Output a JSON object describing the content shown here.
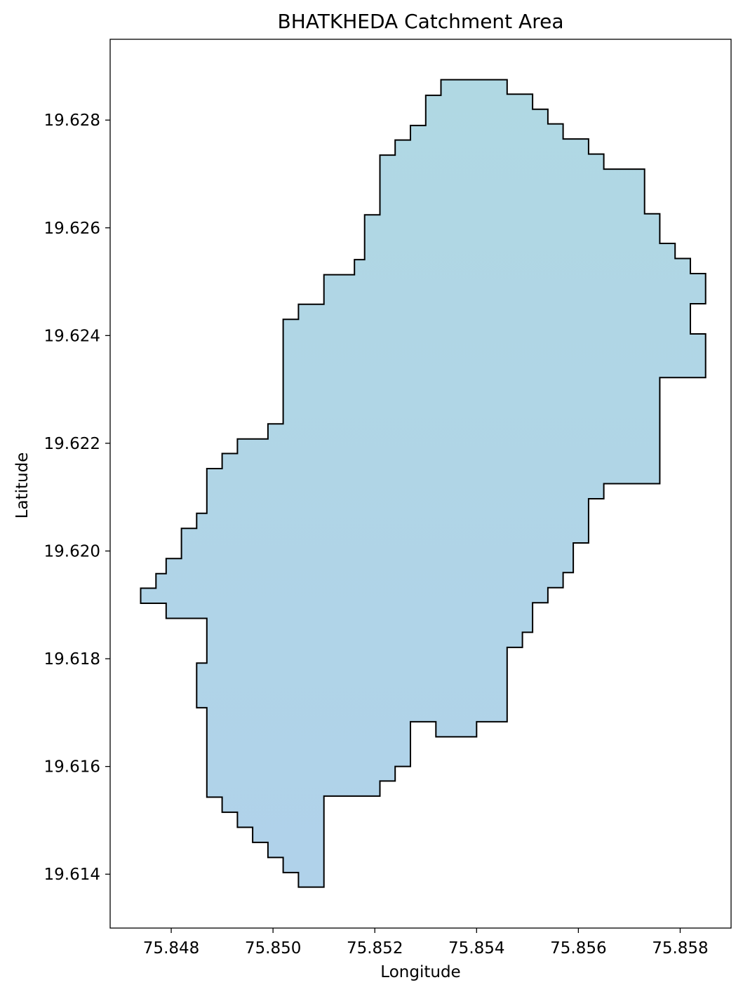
{
  "chart_data": {
    "type": "map",
    "title": "BHATKHEDA Catchment Area",
    "xlabel": "Longitude",
    "ylabel": "Latitude",
    "xlim": [
      75.8468,
      75.859
    ],
    "ylim": [
      19.613,
      19.6295
    ],
    "xticks": [
      75.848,
      75.85,
      75.852,
      75.854,
      75.856,
      75.858
    ],
    "xtick_labels": [
      "75.848",
      "75.850",
      "75.852",
      "75.854",
      "75.856",
      "75.858"
    ],
    "yticks": [
      19.614,
      19.616,
      19.618,
      19.62,
      19.622,
      19.624,
      19.626,
      19.628
    ],
    "ytick_labels": [
      "19.614",
      "19.616",
      "19.618",
      "19.620",
      "19.622",
      "19.624",
      "19.626",
      "19.628"
    ],
    "grid": false,
    "fill_color_top": "#b0d8e3",
    "fill_color_bottom": "#b0d2ea",
    "edge_color": "#000000",
    "polygon": [
      [
        75.8533,
        19.62875
      ],
      [
        75.8546,
        19.62875
      ],
      [
        75.8546,
        19.62848
      ],
      [
        75.8551,
        19.62848
      ],
      [
        75.8551,
        19.6282
      ],
      [
        75.8554,
        19.6282
      ],
      [
        75.8554,
        19.62793
      ],
      [
        75.8557,
        19.62793
      ],
      [
        75.8557,
        19.62765
      ],
      [
        75.8562,
        19.62765
      ],
      [
        75.8562,
        19.62737
      ],
      [
        75.8565,
        19.62737
      ],
      [
        75.8565,
        19.62709
      ],
      [
        75.8573,
        19.62709
      ],
      [
        75.8573,
        19.62626
      ],
      [
        75.8576,
        19.62626
      ],
      [
        75.8576,
        19.62571
      ],
      [
        75.8579,
        19.62571
      ],
      [
        75.8579,
        19.62543
      ],
      [
        75.8582,
        19.62543
      ],
      [
        75.8582,
        19.62515
      ],
      [
        75.8585,
        19.62515
      ],
      [
        75.8585,
        19.62459
      ],
      [
        75.8582,
        19.62459
      ],
      [
        75.8582,
        19.62403
      ],
      [
        75.8585,
        19.62403
      ],
      [
        75.8585,
        19.62322
      ],
      [
        75.8576,
        19.62322
      ],
      [
        75.8576,
        19.62125
      ],
      [
        75.8565,
        19.62125
      ],
      [
        75.8565,
        19.62097
      ],
      [
        75.8562,
        19.62097
      ],
      [
        75.8562,
        19.62015
      ],
      [
        75.8559,
        19.62015
      ],
      [
        75.8559,
        19.6196
      ],
      [
        75.8557,
        19.6196
      ],
      [
        75.8557,
        19.61932
      ],
      [
        75.8554,
        19.61932
      ],
      [
        75.8554,
        19.61904
      ],
      [
        75.8551,
        19.61904
      ],
      [
        75.8551,
        19.61849
      ],
      [
        75.8549,
        19.61849
      ],
      [
        75.8549,
        19.61821
      ],
      [
        75.8546,
        19.61821
      ],
      [
        75.8546,
        19.61683
      ],
      [
        75.854,
        19.61683
      ],
      [
        75.854,
        19.61655
      ],
      [
        75.8532,
        19.61655
      ],
      [
        75.8532,
        19.61683
      ],
      [
        75.8527,
        19.61683
      ],
      [
        75.8527,
        19.616
      ],
      [
        75.8524,
        19.616
      ],
      [
        75.8524,
        19.61573
      ],
      [
        75.8521,
        19.61573
      ],
      [
        75.8521,
        19.61545
      ],
      [
        75.851,
        19.61545
      ],
      [
        75.851,
        19.61376
      ],
      [
        75.8505,
        19.61376
      ],
      [
        75.8505,
        19.61403
      ],
      [
        75.8502,
        19.61403
      ],
      [
        75.8502,
        19.61431
      ],
      [
        75.8499,
        19.61431
      ],
      [
        75.8499,
        19.61459
      ],
      [
        75.8496,
        19.61459
      ],
      [
        75.8496,
        19.61487
      ],
      [
        75.8493,
        19.61487
      ],
      [
        75.8493,
        19.61515
      ],
      [
        75.849,
        19.61515
      ],
      [
        75.849,
        19.61543
      ],
      [
        75.8487,
        19.61543
      ],
      [
        75.8487,
        19.61709
      ],
      [
        75.8485,
        19.61709
      ],
      [
        75.8485,
        19.61792
      ],
      [
        75.8487,
        19.61792
      ],
      [
        75.8487,
        19.61875
      ],
      [
        75.8479,
        19.61875
      ],
      [
        75.8479,
        19.61903
      ],
      [
        75.8474,
        19.61903
      ],
      [
        75.8474,
        19.61931
      ],
      [
        75.8477,
        19.61931
      ],
      [
        75.8477,
        19.61958
      ],
      [
        75.8479,
        19.61958
      ],
      [
        75.8479,
        19.61986
      ],
      [
        75.8482,
        19.61986
      ],
      [
        75.8482,
        19.62042
      ],
      [
        75.8485,
        19.62042
      ],
      [
        75.8485,
        19.6207
      ],
      [
        75.8487,
        19.6207
      ],
      [
        75.8487,
        19.62153
      ],
      [
        75.849,
        19.62153
      ],
      [
        75.849,
        19.62181
      ],
      [
        75.8493,
        19.62181
      ],
      [
        75.8493,
        19.62208
      ],
      [
        75.8499,
        19.62208
      ],
      [
        75.8499,
        19.62236
      ],
      [
        75.8502,
        19.62236
      ],
      [
        75.8502,
        19.6243
      ],
      [
        75.8505,
        19.6243
      ],
      [
        75.8505,
        19.62458
      ],
      [
        75.851,
        19.62458
      ],
      [
        75.851,
        19.62513
      ],
      [
        75.8516,
        19.62513
      ],
      [
        75.8516,
        19.62541
      ],
      [
        75.8518,
        19.62541
      ],
      [
        75.8518,
        19.62624
      ],
      [
        75.8521,
        19.62624
      ],
      [
        75.8521,
        19.62735
      ],
      [
        75.8524,
        19.62735
      ],
      [
        75.8524,
        19.62763
      ],
      [
        75.8527,
        19.62763
      ],
      [
        75.8527,
        19.6279
      ],
      [
        75.853,
        19.6279
      ],
      [
        75.853,
        19.62846
      ],
      [
        75.8533,
        19.62846
      ]
    ]
  }
}
